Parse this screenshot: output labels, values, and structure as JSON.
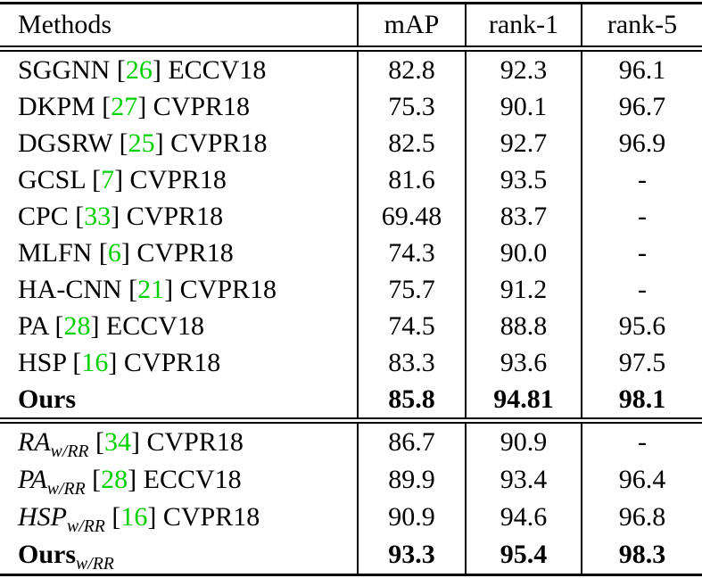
{
  "table": {
    "citation_color": "#00d000",
    "text_color": "#000000",
    "rule_color": "#000000",
    "columns": [
      "Methods",
      "mAP",
      "rank-1",
      "rank-5"
    ],
    "sections": [
      {
        "rows": [
          {
            "bold": false,
            "name_parts": [
              {
                "t": "text",
                "v": "SGGNN ["
              },
              {
                "t": "cite",
                "v": "26"
              },
              {
                "t": "text",
                "v": "] ECCV18"
              }
            ],
            "values": [
              "82.8",
              "92.3",
              "96.1"
            ]
          },
          {
            "bold": false,
            "name_parts": [
              {
                "t": "text",
                "v": "DKPM ["
              },
              {
                "t": "cite",
                "v": "27"
              },
              {
                "t": "text",
                "v": "] CVPR18"
              }
            ],
            "values": [
              "75.3",
              "90.1",
              "96.7"
            ]
          },
          {
            "bold": false,
            "name_parts": [
              {
                "t": "text",
                "v": "DGSRW ["
              },
              {
                "t": "cite",
                "v": "25"
              },
              {
                "t": "text",
                "v": "] CVPR18"
              }
            ],
            "values": [
              "82.5",
              "92.7",
              "96.9"
            ]
          },
          {
            "bold": false,
            "name_parts": [
              {
                "t": "text",
                "v": "GCSL ["
              },
              {
                "t": "cite",
                "v": "7"
              },
              {
                "t": "text",
                "v": "] CVPR18"
              }
            ],
            "values": [
              "81.6",
              "93.5",
              "-"
            ]
          },
          {
            "bold": false,
            "name_parts": [
              {
                "t": "text",
                "v": "CPC ["
              },
              {
                "t": "cite",
                "v": "33"
              },
              {
                "t": "text",
                "v": "] CVPR18"
              }
            ],
            "values": [
              "69.48",
              "83.7",
              "-"
            ]
          },
          {
            "bold": false,
            "name_parts": [
              {
                "t": "text",
                "v": "MLFN ["
              },
              {
                "t": "cite",
                "v": "6"
              },
              {
                "t": "text",
                "v": "] CVPR18"
              }
            ],
            "values": [
              "74.3",
              "90.0",
              "-"
            ]
          },
          {
            "bold": false,
            "name_parts": [
              {
                "t": "text",
                "v": "HA-CNN ["
              },
              {
                "t": "cite",
                "v": "21"
              },
              {
                "t": "text",
                "v": "] CVPR18"
              }
            ],
            "values": [
              "75.7",
              "91.2",
              "-"
            ]
          },
          {
            "bold": false,
            "name_parts": [
              {
                "t": "text",
                "v": "PA ["
              },
              {
                "t": "cite",
                "v": "28"
              },
              {
                "t": "text",
                "v": "] ECCV18"
              }
            ],
            "values": [
              "74.5",
              "88.8",
              "95.6"
            ]
          },
          {
            "bold": false,
            "name_parts": [
              {
                "t": "text",
                "v": "HSP ["
              },
              {
                "t": "cite",
                "v": "16"
              },
              {
                "t": "text",
                "v": "] CVPR18"
              }
            ],
            "values": [
              "83.3",
              "93.6",
              "97.5"
            ]
          },
          {
            "bold": true,
            "name_parts": [
              {
                "t": "text",
                "v": "Ours"
              }
            ],
            "values": [
              "85.8",
              "94.81",
              "98.1"
            ]
          }
        ]
      },
      {
        "rows": [
          {
            "bold": false,
            "name_parts": [
              {
                "t": "math",
                "v": "RA"
              },
              {
                "t": "sub",
                "v": "w/RR"
              },
              {
                "t": "text",
                "v": " ["
              },
              {
                "t": "cite",
                "v": "34"
              },
              {
                "t": "text",
                "v": "] CVPR18"
              }
            ],
            "values": [
              "86.7",
              "90.9",
              "-"
            ]
          },
          {
            "bold": false,
            "name_parts": [
              {
                "t": "math",
                "v": "PA"
              },
              {
                "t": "sub",
                "v": "w/RR"
              },
              {
                "t": "text",
                "v": " ["
              },
              {
                "t": "cite",
                "v": "28"
              },
              {
                "t": "text",
                "v": "] ECCV18"
              }
            ],
            "values": [
              "89.9",
              "93.4",
              "96.4"
            ]
          },
          {
            "bold": false,
            "name_parts": [
              {
                "t": "math",
                "v": "HSP"
              },
              {
                "t": "sub",
                "v": "w/RR"
              },
              {
                "t": "text",
                "v": " ["
              },
              {
                "t": "cite",
                "v": "16"
              },
              {
                "t": "text",
                "v": "] CVPR18"
              }
            ],
            "values": [
              "90.9",
              "94.6",
              "96.8"
            ]
          },
          {
            "bold": true,
            "name_parts": [
              {
                "t": "text",
                "v": "Ours"
              },
              {
                "t": "sub",
                "v": "w/RR"
              }
            ],
            "values": [
              "93.3",
              "95.4",
              "98.3"
            ]
          }
        ]
      }
    ]
  }
}
